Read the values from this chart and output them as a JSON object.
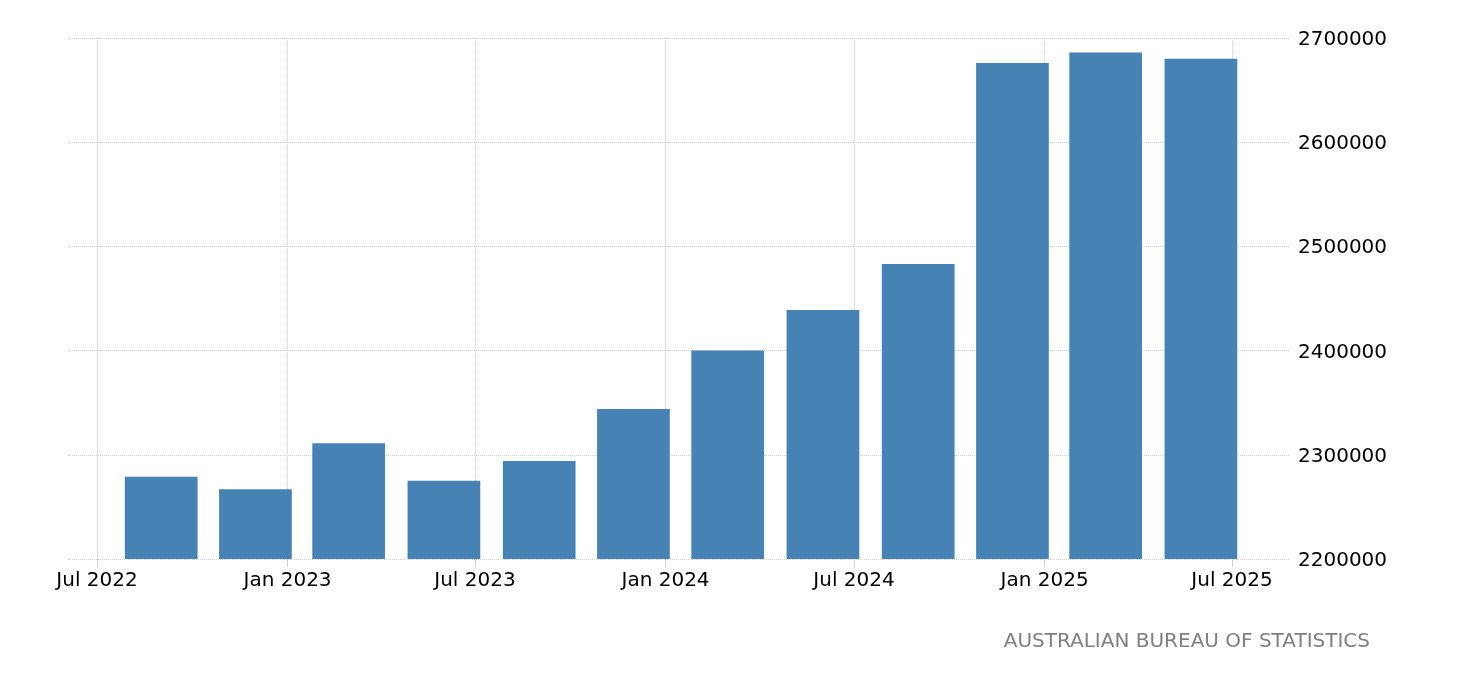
{
  "chart_data": {
    "type": "bar",
    "x": [
      "2022-09",
      "2022-12",
      "2023-03",
      "2023-06",
      "2023-09",
      "2023-12",
      "2024-03",
      "2024-06",
      "2024-09",
      "2024-12",
      "2025-03",
      "2025-06"
    ],
    "values": [
      2279000,
      2267000,
      2311000,
      2275000,
      2294000,
      2344000,
      2400000,
      2439000,
      2483000,
      2676000,
      2686000,
      2680000
    ],
    "color": "#4682b4",
    "xlim": [
      "2022-06-03",
      "2025-08-26"
    ],
    "xticks": [
      {
        "value": "2022-07",
        "label": "Jul 2022"
      },
      {
        "value": "2023-01",
        "label": "Jan 2023"
      },
      {
        "value": "2023-07",
        "label": "Jul 2023"
      },
      {
        "value": "2024-01",
        "label": "Jan 2024"
      },
      {
        "value": "2024-07",
        "label": "Jul 2024"
      },
      {
        "value": "2025-01",
        "label": "Jan 2025"
      },
      {
        "value": "2025-07",
        "label": "Jul 2025"
      }
    ],
    "ylim": [
      2200000,
      2700000
    ],
    "yticks": [
      2200000,
      2300000,
      2400000,
      2500000,
      2600000,
      2700000
    ],
    "grid": true,
    "annotations": [
      "AUSTRALIAN BUREAU OF STATISTICS"
    ]
  }
}
